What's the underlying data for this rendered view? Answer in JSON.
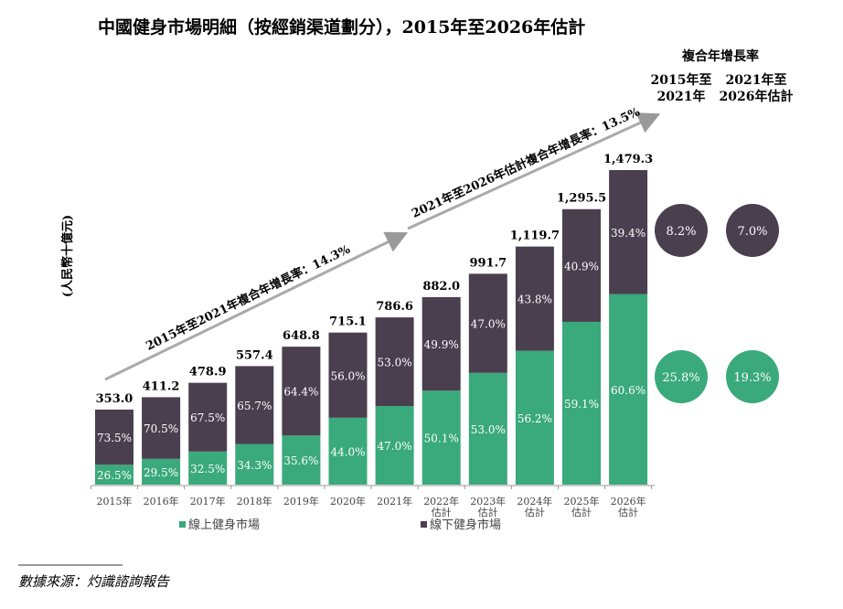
{
  "chart_data": {
    "type": "bar",
    "stacked": true,
    "title": "中國健身市場明細（按經銷渠道劃分），2015年至2026年估計",
    "ylabel": "(人民幣十億元)",
    "categories": [
      "2015年",
      "2016年",
      "2017年",
      "2018年",
      "2019年",
      "2020年",
      "2021年",
      "2022年\n估計",
      "2023年\n估計",
      "2024年\n估計",
      "2025年\n估計",
      "2026年\n估計"
    ],
    "totals": [
      353.0,
      411.2,
      478.9,
      557.4,
      648.8,
      715.1,
      786.6,
      882.0,
      991.7,
      1119.7,
      1295.5,
      1479.3
    ],
    "total_labels": [
      "353.0",
      "411.2",
      "478.9",
      "557.4",
      "648.8",
      "715.1",
      "786.6",
      "882.0",
      "991.7",
      "1,119.7",
      "1,295.5",
      "1,479.3"
    ],
    "series": [
      {
        "name": "線上健身市場",
        "color": "#3aa97c",
        "share_pct": [
          26.5,
          29.5,
          32.5,
          34.3,
          35.6,
          44.0,
          47.0,
          50.1,
          53.0,
          56.2,
          59.1,
          60.6
        ]
      },
      {
        "name": "線下健身市場",
        "color": "#4a3f4f",
        "share_pct": [
          73.5,
          70.5,
          67.5,
          65.7,
          64.4,
          56.0,
          53.0,
          49.9,
          47.0,
          43.8,
          40.9,
          39.4
        ]
      }
    ],
    "annotations": [
      "2015年至2021年複合年增長率：14.3%",
      "2021年至2026年估計複合年增長率：13.5%"
    ],
    "cagr_table": {
      "header": "複合年增長率",
      "columns": [
        [
          "2015年至",
          "2021年"
        ],
        [
          "2021年至",
          "2026年估計"
        ]
      ],
      "offline": [
        "8.2%",
        "7.0%"
      ],
      "online": [
        "25.8%",
        "19.3%"
      ]
    },
    "legend_position": "bottom",
    "grid": false
  },
  "source": "數據來源：灼識諮詢報告"
}
